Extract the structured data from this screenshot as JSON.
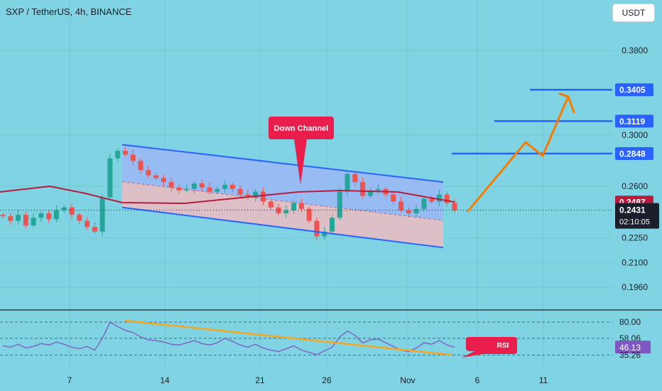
{
  "header": {
    "title": "SXP / TetherUS, 4h, BINANCE",
    "currency_button": "USDT"
  },
  "colors": {
    "background": "#7fd3e2",
    "channel_upper_fill": "#9bb7f7",
    "channel_lower_fill": "#e8bcc4",
    "channel_line": "#2962ff",
    "ma_line": "#b71c3c",
    "bull_candle": "#26a69a",
    "bear_candle": "#ef5350",
    "projection": "#f57c00",
    "target_label": "#2962ff",
    "annotation": "#e91e4d",
    "rsi_line": "#7e57c2",
    "rsi_trend": "#f5a623"
  },
  "annotations": {
    "down_channel": "Down Channel",
    "rsi": "RSI"
  },
  "chart_data": [
    {
      "type": "candlestick",
      "title": "SXP / TetherUS, 4h, BINANCE",
      "y_scale": "log",
      "y_ticks": [
        0.38,
        0.3,
        0.26,
        0.225,
        0.21,
        0.196
      ],
      "y_tick_labels": [
        "0.3800",
        "0.3000",
        "0.2600",
        "0.2250",
        "0.2100",
        "0.1960"
      ],
      "x_ticks": [
        "7",
        "14",
        "21",
        "26",
        "Nov",
        "6",
        "11"
      ],
      "price_labels": [
        {
          "value": 0.3405,
          "text": "0.3405",
          "kind": "target"
        },
        {
          "value": 0.3119,
          "text": "0.3119",
          "kind": "target"
        },
        {
          "value": 0.2848,
          "text": "0.2848",
          "kind": "target"
        },
        {
          "value": 0.2487,
          "text": "0.2487",
          "kind": "ma"
        },
        {
          "value": 0.2431,
          "text": "0.2431",
          "kind": "last"
        }
      ],
      "countdown": "02:10:05",
      "last_price": 0.2431,
      "ma_value": 0.2487,
      "targets": [
        0.2848,
        0.3119,
        0.3405
      ],
      "channel": {
        "label": "Down Channel",
        "upper": {
          "start": 0.292,
          "end": 0.263
        },
        "lower": {
          "start": 0.245,
          "end": 0.219
        }
      },
      "projection_path": [
        0.242,
        0.294,
        0.283,
        0.334
      ],
      "price_series": [
        0.239,
        0.236,
        0.24,
        0.233,
        0.238,
        0.241,
        0.237,
        0.243,
        0.245,
        0.24,
        0.236,
        0.232,
        0.229,
        0.252,
        0.281,
        0.287,
        0.284,
        0.279,
        0.272,
        0.268,
        0.266,
        0.263,
        0.259,
        0.257,
        0.258,
        0.262,
        0.259,
        0.256,
        0.258,
        0.261,
        0.258,
        0.254,
        0.252,
        0.256,
        0.249,
        0.245,
        0.241,
        0.243,
        0.248,
        0.244,
        0.236,
        0.226,
        0.229,
        0.238,
        0.256,
        0.269,
        0.263,
        0.253,
        0.257,
        0.258,
        0.254,
        0.249,
        0.243,
        0.241,
        0.244,
        0.251,
        0.249,
        0.254,
        0.248,
        0.243
      ]
    },
    {
      "type": "line",
      "title": "RSI",
      "y_ticks": [
        80.0,
        58.06,
        46.13,
        35.26
      ],
      "y_tick_labels": [
        "80.00",
        "58.06",
        "46.13",
        "35.26"
      ],
      "ylim": [
        30,
        85
      ],
      "current": 46.13,
      "trendline": {
        "start": 82,
        "end": 35.5
      },
      "values": [
        48,
        46,
        50,
        45,
        47,
        51,
        49,
        53,
        50,
        46,
        44,
        47,
        42,
        58,
        80,
        74,
        69,
        66,
        60,
        56,
        55,
        53,
        50,
        49,
        52,
        55,
        51,
        49,
        52,
        58,
        54,
        49,
        46,
        50,
        45,
        42,
        40,
        44,
        48,
        42,
        39,
        36,
        41,
        46,
        60,
        68,
        62,
        52,
        56,
        57,
        52,
        47,
        42,
        40,
        45,
        52,
        50,
        55,
        49,
        46
      ]
    }
  ]
}
